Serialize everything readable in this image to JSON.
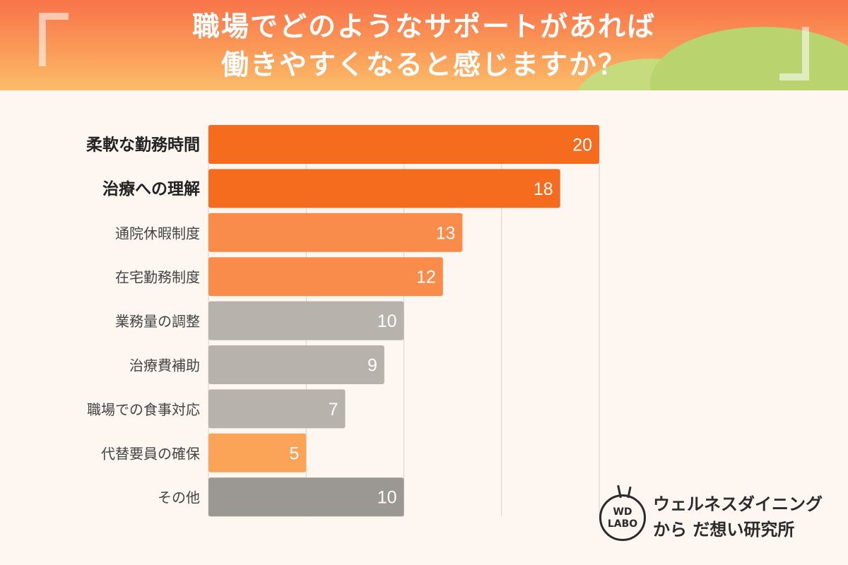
{
  "header": {
    "title_line1": "職場でどのようなサポートがあれば",
    "title_line2": "働きやすくなると感じますか？"
  },
  "brand": {
    "logo_line1": "WD",
    "logo_line2": "LABO",
    "name_line1": "ウェルネスダイニング",
    "name_line2": "から だ想い研究所"
  },
  "chart_data": {
    "type": "bar",
    "orientation": "horizontal",
    "title": "職場でどのようなサポートがあれば働きやすくなると感じますか？",
    "categories": [
      "柔軟な勤務時間",
      "治療への理解",
      "通院休暇制度",
      "在宅勤務制度",
      "業務量の調整",
      "治療費補助",
      "職場での食事対応",
      "代替要員の確保",
      "その他"
    ],
    "values": [
      20,
      18,
      13,
      12,
      10,
      9,
      7,
      5,
      10
    ],
    "bar_colors": [
      "#f56c1f",
      "#f56c1f",
      "#f98c4b",
      "#f98c4b",
      "#b8b2ad",
      "#b8b2ad",
      "#b8b2ad",
      "#fba357",
      "#9b9792"
    ],
    "bold_categories": [
      true,
      true,
      false,
      false,
      false,
      false,
      false,
      false,
      false
    ],
    "xlim": [
      0,
      20
    ],
    "grid": true,
    "gridlines_at": [
      5,
      10,
      15,
      20
    ]
  }
}
